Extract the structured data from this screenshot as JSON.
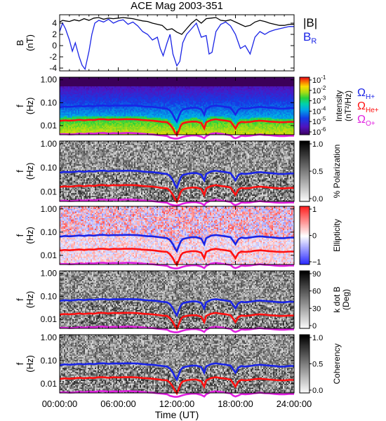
{
  "chart_data": {
    "title": "ACE Mag 2003-351",
    "type": "multi-panel",
    "x_axis": {
      "label": "Time (UT)",
      "range_hours": [
        0,
        24
      ],
      "ticks": [
        {
          "hour": 0,
          "label": "00:00:00"
        },
        {
          "hour": 6,
          "label": "06:00:00"
        },
        {
          "hour": 12,
          "label": "12:00:00"
        },
        {
          "hour": 18,
          "label": "18:00:00"
        },
        {
          "hour": 24,
          "label": "24:00:00"
        }
      ]
    },
    "colors": {
      "black": "#000000",
      "blue": "#1a24e6",
      "red": "#ff1010",
      "magenta": "#e020e0"
    },
    "panels": [
      {
        "type": "line",
        "ylabel_lines": [
          "B",
          "(nT)"
        ],
        "yrange": [
          -4.5,
          5.5
        ],
        "yticks": [
          {
            "v": 4,
            "label": "4"
          },
          {
            "v": 2,
            "label": "2"
          },
          {
            "v": 0,
            "label": "0"
          },
          {
            "v": -2,
            "label": "-2"
          },
          {
            "v": -4,
            "label": "-4"
          }
        ],
        "legend": [
          {
            "label": "|B|",
            "color": "#000000"
          },
          {
            "label": "B",
            "sub": "R",
            "color": "#1a24e6"
          }
        ],
        "series": [
          {
            "name": "|B|",
            "color": "#000000",
            "x": [
              0,
              0.3,
              0.6,
              1,
              1.5,
              2,
              2.5,
              3,
              3.5,
              4,
              4.5,
              5,
              5.5,
              6,
              6.5,
              7,
              7.5,
              8,
              8.5,
              9,
              9.5,
              10,
              10.5,
              11,
              11.5,
              12,
              12.5,
              13,
              13.5,
              14,
              14.5,
              15,
              15.5,
              16,
              16.5,
              17,
              17.5,
              18,
              18.5,
              19,
              19.5,
              20,
              20.5,
              21,
              21.5,
              22,
              22.5,
              23,
              23.5,
              24
            ],
            "y": [
              4.2,
              4.5,
              4.4,
              4.3,
              4.6,
              4.4,
              4.8,
              4.5,
              4.9,
              5.0,
              4.7,
              4.9,
              4.8,
              4.9,
              5.0,
              4.9,
              4.8,
              4.6,
              4.4,
              4.3,
              4.0,
              3.8,
              3.6,
              2.8,
              3.0,
              2.4,
              2.0,
              3.0,
              4.0,
              4.7,
              4.0,
              4.8,
              4.9,
              5.0,
              4.5,
              4.4,
              4.6,
              4.2,
              3.8,
              3.4,
              3.6,
              4.2,
              4.5,
              4.3,
              4.0,
              3.8,
              3.6,
              3.6,
              3.8,
              3.8
            ]
          },
          {
            "name": "B_R",
            "color": "#1a24e6",
            "x": [
              0,
              0.3,
              0.6,
              1,
              1.3,
              1.6,
              2,
              2.3,
              2.6,
              3,
              3.3,
              3.6,
              4,
              4.5,
              5,
              5.5,
              6,
              6.5,
              7,
              7.5,
              8,
              8.5,
              9,
              9.5,
              10,
              10.3,
              10.6,
              11,
              11.3,
              11.6,
              12,
              12.3,
              12.6,
              13,
              13.5,
              14,
              14.5,
              15,
              15.3,
              15.6,
              16,
              16.5,
              17,
              17.5,
              18,
              18.5,
              19,
              19.5,
              20,
              20.5,
              21,
              21.5,
              22,
              22.5,
              23,
              23.5,
              24
            ],
            "y": [
              2.5,
              4.0,
              3.0,
              1.0,
              -1.0,
              0.5,
              -2.0,
              -3.5,
              -4.2,
              -1.0,
              2.0,
              4.0,
              4.5,
              4.2,
              4.7,
              4.0,
              4.4,
              4.6,
              3.8,
              4.2,
              3.5,
              2.5,
              2.0,
              1.0,
              1.5,
              -0.5,
              -1.8,
              0.5,
              2.0,
              -1.5,
              -3.6,
              -2.8,
              0.5,
              2.0,
              3.0,
              4.0,
              1.5,
              1.8,
              -1.5,
              -1.2,
              2.5,
              3.8,
              4.2,
              3.5,
              2.0,
              -0.5,
              0.0,
              -1.5,
              1.5,
              2.5,
              2.0,
              2.5,
              2.8,
              3.0,
              3.2,
              3.4,
              3.4
            ]
          }
        ]
      },
      {
        "type": "spectrogram",
        "ylabel_lines": [
          "f",
          "(Hz)"
        ],
        "yticks": [
          {
            "v": 1.0,
            "label": "1.00"
          },
          {
            "v": 0.1,
            "label": "0.10"
          },
          {
            "v": 0.01,
            "label": "0.01"
          }
        ],
        "colorbar": {
          "scheme": "rainbow",
          "label_lines": [
            "Intensity",
            "(nT²/Hz)"
          ],
          "ticks": [
            {
              "label": "10",
              "sup": "-1"
            },
            {
              "label": "10",
              "sup": "-2"
            },
            {
              "label": "10",
              "sup": "-3"
            },
            {
              "label": "10",
              "sup": "-4"
            },
            {
              "label": "10",
              "sup": "-5"
            },
            {
              "label": "10",
              "sup": "-6"
            }
          ]
        },
        "side_legend": [
          {
            "label": "Ω",
            "sub": "H+",
            "color": "#1a24e6"
          },
          {
            "label": "Ω",
            "sub": "He+",
            "color": "#ff1010"
          },
          {
            "label": "Ω",
            "sub": "O+",
            "color": "#e020e0"
          }
        ]
      },
      {
        "type": "spectrogram",
        "ylabel_lines": [
          "f",
          "(Hz)"
        ],
        "yticks": [
          {
            "v": 1.0,
            "label": "1.00"
          },
          {
            "v": 0.1,
            "label": "0.10"
          },
          {
            "v": 0.01,
            "label": "0.01"
          }
        ],
        "colorbar": {
          "scheme": "gray",
          "label_lines": [
            "% Polarization"
          ],
          "ticks": [
            {
              "label": "1.0"
            },
            {
              "label": "0.5"
            },
            {
              "label": "0.0"
            }
          ]
        }
      },
      {
        "type": "spectrogram",
        "ylabel_lines": [
          "f",
          "(Hz)"
        ],
        "yticks": [
          {
            "v": 1.0,
            "label": "1.00"
          },
          {
            "v": 0.1,
            "label": "0.10"
          },
          {
            "v": 0.01,
            "label": "0.01"
          }
        ],
        "colorbar": {
          "scheme": "bwr",
          "label_lines": [
            "Ellipticity"
          ],
          "ticks": [
            {
              "label": "1"
            },
            {
              "label": "0"
            },
            {
              "label": "−1"
            }
          ]
        }
      },
      {
        "type": "spectrogram",
        "ylabel_lines": [
          "f",
          "(Hz)"
        ],
        "yticks": [
          {
            "v": 1.0,
            "label": "1.00"
          },
          {
            "v": 0.1,
            "label": "0.10"
          },
          {
            "v": 0.01,
            "label": "0.01"
          }
        ],
        "colorbar": {
          "scheme": "gray",
          "label_lines": [
            "k dot B",
            "(Deg)"
          ],
          "ticks": [
            {
              "label": "90"
            },
            {
              "label": "60"
            },
            {
              "label": "30"
            },
            {
              "label": "0"
            }
          ]
        }
      },
      {
        "type": "spectrogram",
        "ylabel_lines": [
          "f",
          "(Hz)"
        ],
        "yticks": [
          {
            "v": 1.0,
            "label": "1.00"
          },
          {
            "v": 0.1,
            "label": "0.10"
          },
          {
            "v": 0.01,
            "label": "0.01"
          }
        ],
        "colorbar": {
          "scheme": "gray",
          "label_lines": [
            "Coherency"
          ],
          "ticks": [
            {
              "label": "1.0"
            },
            {
              "label": "0.5"
            },
            {
              "label": "0.0"
            }
          ]
        }
      }
    ],
    "gyrofrequency_lines": {
      "x": [
        0,
        0.5,
        1,
        1.5,
        2,
        2.5,
        3,
        3.5,
        4,
        4.5,
        5,
        5.5,
        6,
        6.5,
        7,
        7.5,
        8,
        8.5,
        9,
        9.5,
        10,
        10.5,
        11,
        11.3,
        11.6,
        11.8,
        12,
        12.2,
        12.4,
        12.6,
        13,
        13.5,
        14,
        14.5,
        14.8,
        15,
        15.5,
        16,
        16.5,
        17,
        17.5,
        17.8,
        18,
        18.3,
        18.6,
        19,
        19.5,
        20,
        20.5,
        21,
        21.5,
        22,
        22.5,
        23,
        23.5,
        24
      ],
      "H+": [
        0.063,
        0.068,
        0.066,
        0.068,
        0.072,
        0.068,
        0.073,
        0.07,
        0.075,
        0.076,
        0.072,
        0.075,
        0.074,
        0.075,
        0.076,
        0.075,
        0.074,
        0.07,
        0.067,
        0.066,
        0.062,
        0.058,
        0.055,
        0.045,
        0.03,
        0.02,
        0.015,
        0.025,
        0.04,
        0.05,
        0.055,
        0.06,
        0.06,
        0.052,
        0.03,
        0.055,
        0.07,
        0.075,
        0.07,
        0.066,
        0.06,
        0.04,
        0.03,
        0.05,
        0.058,
        0.055,
        0.058,
        0.063,
        0.066,
        0.063,
        0.06,
        0.058,
        0.055,
        0.055,
        0.058,
        0.058
      ],
      "He+": [
        0.016,
        0.017,
        0.0165,
        0.017,
        0.018,
        0.017,
        0.018,
        0.0175,
        0.019,
        0.019,
        0.018,
        0.019,
        0.0185,
        0.019,
        0.019,
        0.019,
        0.0185,
        0.0175,
        0.017,
        0.0165,
        0.0155,
        0.0145,
        0.014,
        0.011,
        0.0075,
        0.005,
        0.0038,
        0.006,
        0.01,
        0.0125,
        0.014,
        0.015,
        0.015,
        0.013,
        0.0075,
        0.014,
        0.0175,
        0.019,
        0.0175,
        0.0165,
        0.015,
        0.01,
        0.0075,
        0.0125,
        0.0145,
        0.014,
        0.0145,
        0.0158,
        0.0165,
        0.0158,
        0.015,
        0.0145,
        0.014,
        0.014,
        0.0145,
        0.0145
      ],
      "O+": [
        0.0042,
        0.0043,
        0.0041,
        0.0042,
        0.0045,
        0.0043,
        0.0046,
        0.0044,
        0.0047,
        0.0048,
        0.0045,
        0.0047,
        0.0046,
        0.0047,
        0.0048,
        0.0047,
        0.0046,
        0.0044,
        0.0042,
        0.0041,
        0.0039,
        0.0037,
        0.0035,
        0.003,
        0.0028,
        0.0027,
        0.0027,
        0.0028,
        0.003,
        0.0032,
        0.0035,
        0.0037,
        0.0037,
        0.0033,
        0.0028,
        0.0035,
        0.0044,
        0.0047,
        0.0044,
        0.0041,
        0.0038,
        0.003,
        0.0028,
        0.0031,
        0.0036,
        0.0035,
        0.0036,
        0.0039,
        0.0041,
        0.0039,
        0.0038,
        0.0036,
        0.0035,
        0.0035,
        0.0036,
        0.0036
      ]
    }
  }
}
